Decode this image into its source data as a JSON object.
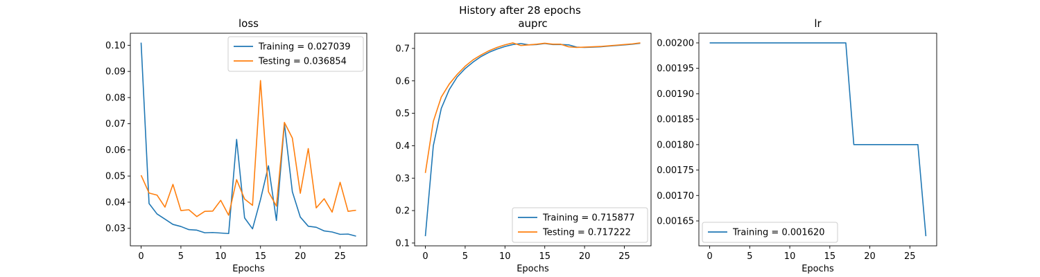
{
  "figure": {
    "suptitle": "History after 28 epochs"
  },
  "chart_data": [
    {
      "type": "line",
      "title": "loss",
      "xlabel": "Epochs",
      "ylabel": "",
      "xlim": [
        -1.35,
        28.35
      ],
      "ylim": [
        0.0233,
        0.1046
      ],
      "xticks": [
        0,
        5,
        10,
        15,
        20,
        25
      ],
      "yticks": [
        0.03,
        0.04,
        0.05,
        0.06,
        0.07,
        0.08,
        0.09,
        0.1
      ],
      "ytick_labels": [
        "0.03",
        "0.04",
        "0.05",
        "0.06",
        "0.07",
        "0.08",
        "0.09",
        "0.10"
      ],
      "legend_position": "upper right",
      "grid": false,
      "series": [
        {
          "name": "Training = 0.027039",
          "color": "#1f77b4",
          "x": [
            0,
            1,
            2,
            3,
            4,
            5,
            6,
            7,
            8,
            9,
            10,
            11,
            12,
            13,
            14,
            15,
            16,
            17,
            18,
            19,
            20,
            21,
            22,
            23,
            24,
            25,
            26,
            27
          ],
          "y": [
            0.101,
            0.0395,
            0.0355,
            0.0335,
            0.0315,
            0.0307,
            0.0295,
            0.0293,
            0.0283,
            0.0284,
            0.0282,
            0.028,
            0.064,
            0.034,
            0.0298,
            0.041,
            0.0539,
            0.033,
            0.07,
            0.044,
            0.0343,
            0.0308,
            0.0304,
            0.029,
            0.0286,
            0.0277,
            0.0278,
            0.027
          ]
        },
        {
          "name": "Testing = 0.036854",
          "color": "#ff7f0e",
          "x": [
            0,
            1,
            2,
            3,
            4,
            5,
            6,
            7,
            8,
            9,
            10,
            11,
            12,
            13,
            14,
            15,
            16,
            17,
            18,
            19,
            20,
            21,
            22,
            23,
            24,
            25,
            26,
            27
          ],
          "y": [
            0.0503,
            0.0435,
            0.0427,
            0.0381,
            0.0468,
            0.0368,
            0.0371,
            0.0345,
            0.0365,
            0.0366,
            0.0407,
            0.035,
            0.0486,
            0.0412,
            0.0388,
            0.0865,
            0.044,
            0.0385,
            0.0705,
            0.0645,
            0.0434,
            0.0605,
            0.0378,
            0.0413,
            0.0362,
            0.0476,
            0.0365,
            0.0369
          ]
        }
      ]
    },
    {
      "type": "line",
      "title": "auprc",
      "xlabel": "Epochs",
      "ylabel": "",
      "xlim": [
        -1.35,
        28.35
      ],
      "ylim": [
        0.0913,
        0.7468
      ],
      "xticks": [
        0,
        5,
        10,
        15,
        20,
        25
      ],
      "yticks": [
        0.1,
        0.2,
        0.3,
        0.4,
        0.5,
        0.6,
        0.7
      ],
      "ytick_labels": [
        "0.1",
        "0.2",
        "0.3",
        "0.4",
        "0.5",
        "0.6",
        "0.7"
      ],
      "legend_position": "lower right",
      "grid": false,
      "series": [
        {
          "name": "Training = 0.715877",
          "color": "#1f77b4",
          "x": [
            0,
            1,
            2,
            3,
            4,
            5,
            6,
            7,
            8,
            9,
            10,
            11,
            12,
            13,
            14,
            15,
            16,
            17,
            18,
            19,
            20,
            21,
            22,
            23,
            24,
            25,
            26,
            27
          ],
          "y": [
            0.121,
            0.4,
            0.515,
            0.573,
            0.612,
            0.638,
            0.658,
            0.675,
            0.688,
            0.698,
            0.706,
            0.712,
            0.715,
            0.711,
            0.712,
            0.715,
            0.712,
            0.712,
            0.711,
            0.704,
            0.703,
            0.704,
            0.705,
            0.707,
            0.709,
            0.711,
            0.713,
            0.716
          ]
        },
        {
          "name": "Testing = 0.717222",
          "color": "#ff7f0e",
          "x": [
            0,
            1,
            2,
            3,
            4,
            5,
            6,
            7,
            8,
            9,
            10,
            11,
            12,
            13,
            14,
            15,
            16,
            17,
            18,
            19,
            20,
            21,
            22,
            23,
            24,
            25,
            26,
            27
          ],
          "y": [
            0.316,
            0.475,
            0.55,
            0.59,
            0.62,
            0.645,
            0.665,
            0.68,
            0.693,
            0.703,
            0.711,
            0.717,
            0.709,
            0.711,
            0.713,
            0.716,
            0.713,
            0.713,
            0.705,
            0.703,
            0.704,
            0.705,
            0.706,
            0.708,
            0.71,
            0.712,
            0.714,
            0.717
          ]
        }
      ]
    },
    {
      "type": "line",
      "title": "lr",
      "xlabel": "Epochs",
      "ylabel": "",
      "xlim": [
        -1.35,
        28.35
      ],
      "ylim": [
        0.001601,
        0.002019
      ],
      "xticks": [
        0,
        5,
        10,
        15,
        20,
        25
      ],
      "yticks": [
        0.00165,
        0.0017,
        0.00175,
        0.0018,
        0.00185,
        0.0019,
        0.00195,
        0.002
      ],
      "ytick_labels": [
        "0.00165",
        "0.00170",
        "0.00175",
        "0.00180",
        "0.00185",
        "0.00190",
        "0.00195",
        "0.00200"
      ],
      "legend_position": "lower left",
      "grid": false,
      "series": [
        {
          "name": "Training = 0.001620",
          "color": "#1f77b4",
          "x": [
            0,
            1,
            2,
            3,
            4,
            5,
            6,
            7,
            8,
            9,
            10,
            11,
            12,
            13,
            14,
            15,
            16,
            17,
            18,
            19,
            20,
            21,
            22,
            23,
            24,
            25,
            26,
            27
          ],
          "y": [
            0.002,
            0.002,
            0.002,
            0.002,
            0.002,
            0.002,
            0.002,
            0.002,
            0.002,
            0.002,
            0.002,
            0.002,
            0.002,
            0.002,
            0.002,
            0.002,
            0.002,
            0.002,
            0.0018,
            0.0018,
            0.0018,
            0.0018,
            0.0018,
            0.0018,
            0.0018,
            0.0018,
            0.0018,
            0.00162
          ]
        }
      ]
    }
  ]
}
